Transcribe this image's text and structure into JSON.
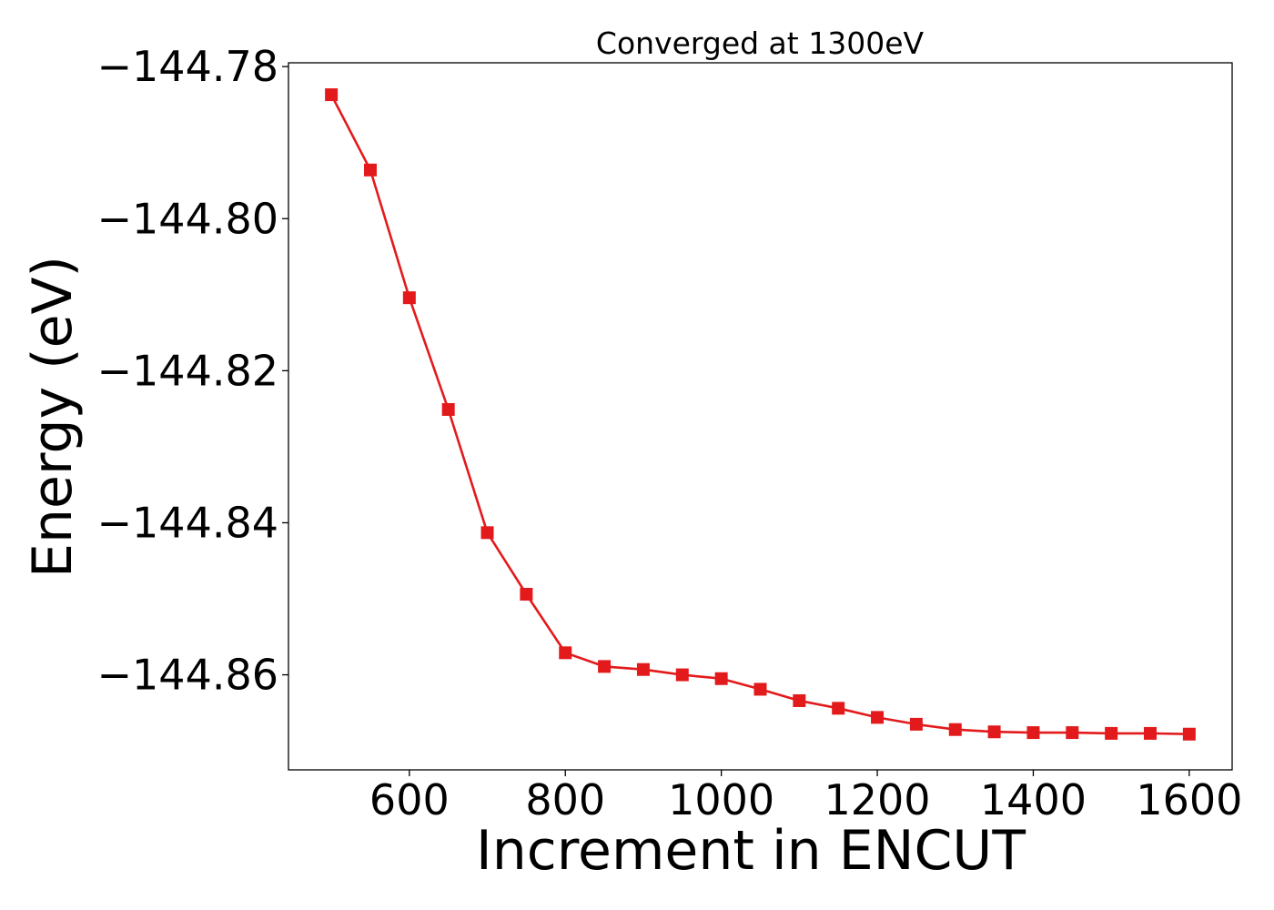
{
  "chart_data": {
    "type": "line",
    "title": "Converged at 1300eV",
    "xlabel": "Increment in ENCUT",
    "ylabel": "Energy (eV)",
    "xlim": [
      445,
      1655
    ],
    "ylim": [
      -144.8725,
      -144.7795
    ],
    "xticks": [
      600,
      800,
      1000,
      1200,
      1400,
      1600
    ],
    "xtick_labels": [
      "600",
      "800",
      "1000",
      "1200",
      "1400",
      "1600"
    ],
    "yticks": [
      -144.78,
      -144.8,
      -144.82,
      -144.84,
      -144.86
    ],
    "ytick_labels": [
      "−144.78",
      "−144.80",
      "−144.82",
      "−144.84",
      "−144.86"
    ],
    "grid": false,
    "legend": "none",
    "series": [
      {
        "color": "#e31a1c",
        "marker": "square",
        "x": [
          500,
          550,
          600,
          650,
          700,
          750,
          800,
          850,
          900,
          950,
          1000,
          1050,
          1100,
          1150,
          1200,
          1250,
          1300,
          1350,
          1400,
          1450,
          1500,
          1550,
          1600
        ],
        "y": [
          -144.7837,
          -144.7936,
          -144.8104,
          -144.8251,
          -144.8413,
          -144.8494,
          -144.8571,
          -144.8589,
          -144.8593,
          -144.86,
          -144.8605,
          -144.8619,
          -144.8634,
          -144.8644,
          -144.8656,
          -144.8665,
          -144.8672,
          -144.8675,
          -144.8676,
          -144.8676,
          -144.8677,
          -144.8677,
          -144.8678
        ]
      }
    ]
  }
}
